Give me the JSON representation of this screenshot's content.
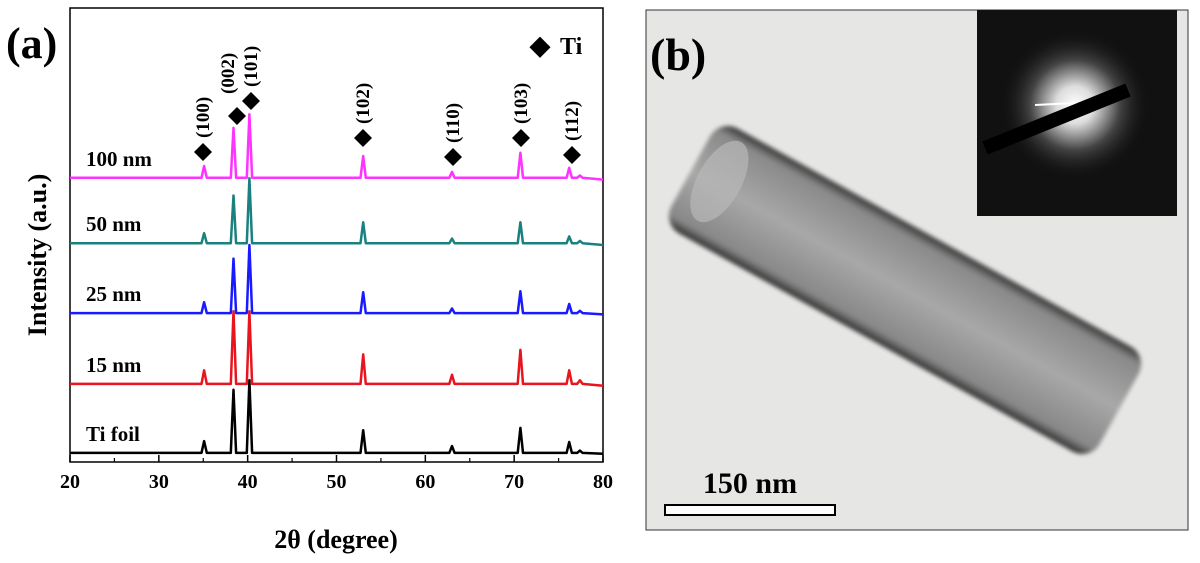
{
  "chart_data": {
    "type": "line",
    "panel_label": "(a)",
    "xlabel": "2θ (degree)",
    "ylabel": "Intensity (a.u.)",
    "xlim": [
      20,
      80
    ],
    "xticks": [
      20,
      30,
      40,
      50,
      60,
      70,
      80
    ],
    "ylim": [
      0,
      100
    ],
    "legend": {
      "marker": "◆",
      "label": "Ti"
    },
    "annotations": [
      "(100)",
      "(002)",
      "(101)",
      "(102)",
      "(110)",
      "(103)",
      "(112)"
    ],
    "x": [
      20,
      34.8,
      35.1,
      35.4,
      38.1,
      38.4,
      38.7,
      39.9,
      40.2,
      40.5,
      52.7,
      53.0,
      53.3,
      62.7,
      63.0,
      63.3,
      70.4,
      70.7,
      71.0,
      75.9,
      76.2,
      76.5,
      77.1,
      77.4,
      77.7,
      80
    ],
    "series": [
      {
        "name": "Ti foil",
        "color": "#000000",
        "values": [
          2,
          2,
          4.6,
          2,
          2,
          15.9,
          2,
          2,
          18,
          2,
          2,
          7,
          2,
          2,
          3.5,
          2,
          2,
          7.5,
          2,
          2,
          4.4,
          2,
          2,
          2.5,
          2,
          1.8
        ]
      },
      {
        "name": "15 nm",
        "color": "#e8141e",
        "values": [
          17.2,
          17.2,
          20.2,
          17.2,
          17.2,
          33.2,
          17.2,
          17.2,
          33.2,
          17.2,
          17.2,
          23.7,
          17.2,
          17.2,
          19.2,
          17.2,
          17.2,
          24.7,
          17.2,
          17.2,
          20.2,
          17.2,
          17.2,
          18,
          17.2,
          16.8
        ]
      },
      {
        "name": "25 nm",
        "color": "#1a1aff",
        "values": [
          32.8,
          32.8,
          35.2,
          32.8,
          32.8,
          44.8,
          32.8,
          32.8,
          47.8,
          32.8,
          32.8,
          37.4,
          32.8,
          32.8,
          33.8,
          32.8,
          32.8,
          37.6,
          32.8,
          32.8,
          34.8,
          32.8,
          32.8,
          33.3,
          32.8,
          32.5
        ]
      },
      {
        "name": "50 nm",
        "color": "#1a8080",
        "values": [
          48.2,
          48.2,
          50.4,
          48.2,
          48.2,
          58.7,
          48.2,
          48.2,
          62.5,
          48.2,
          48.2,
          52.8,
          48.2,
          48.2,
          49.2,
          48.2,
          48.2,
          52.8,
          48.2,
          48.2,
          49.7,
          48.2,
          48.2,
          48.7,
          48.2,
          47.8
        ]
      },
      {
        "name": "100 nm",
        "color": "#ff33ff",
        "values": [
          62.6,
          62.6,
          65.2,
          62.6,
          62.6,
          73.6,
          62.6,
          62.6,
          76.6,
          62.6,
          62.6,
          67.4,
          62.6,
          62.6,
          63.9,
          62.6,
          62.6,
          68.1,
          62.6,
          62.6,
          64.8,
          62.6,
          62.6,
          63.1,
          62.6,
          62.2
        ]
      }
    ]
  },
  "panel_b": {
    "label": "(b)",
    "scale_bar": "150 nm"
  }
}
